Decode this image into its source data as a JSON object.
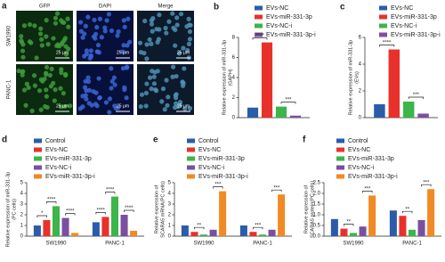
{
  "image_panel": {
    "panel_label": "a",
    "columns": [
      "GFP",
      "DAPI",
      "Merge"
    ],
    "rows": [
      "SW1990",
      "PANC-1"
    ],
    "scale_bar": "25 μm"
  },
  "chart_data": [
    {
      "type": "bar",
      "panel_label": "b",
      "y_label": [
        "Relative expression of miR-331-3p",
        "(GAPH)"
      ],
      "series": [
        {
          "name": "EVs-NC",
          "color": "#2a5caa",
          "values": [
            1.0
          ]
        },
        {
          "name": "EVs-miR-331-3p",
          "color": "#e8312a",
          "values": [
            7.5
          ]
        },
        {
          "name": "EVs-NC-i",
          "color": "#3cb54a",
          "values": [
            1.1
          ]
        },
        {
          "name": "EVs-miR-331-3p-i",
          "color": "#7b4fa0",
          "values": [
            0.2
          ]
        }
      ],
      "ylim": [
        0,
        8
      ],
      "yticks": [
        0,
        2,
        4,
        6,
        8
      ],
      "annotations": [
        {
          "text": "****",
          "category": 0,
          "pair": [
            0,
            1
          ]
        },
        {
          "text": "***",
          "category": 0,
          "pair": [
            2,
            3
          ]
        }
      ]
    },
    {
      "type": "bar",
      "panel_label": "c",
      "y_label": [
        "Relative expression of miR-331-3p",
        "(EVs)"
      ],
      "series": [
        {
          "name": "EVs-NC",
          "color": "#2a5caa",
          "values": [
            1.0
          ]
        },
        {
          "name": "EVs-miR-331-3p",
          "color": "#e8312a",
          "values": [
            5.1
          ]
        },
        {
          "name": "EVs-NC-i",
          "color": "#3cb54a",
          "values": [
            1.2
          ]
        },
        {
          "name": "EVs-miR-331-3p-i",
          "color": "#7b4fa0",
          "values": [
            0.3
          ]
        }
      ],
      "ylim": [
        0,
        6
      ],
      "yticks": [
        0,
        2,
        4,
        6
      ],
      "annotations": [
        {
          "text": "****",
          "category": 0,
          "pair": [
            0,
            1
          ]
        },
        {
          "text": "***",
          "category": 0,
          "pair": [
            2,
            3
          ]
        }
      ]
    },
    {
      "type": "bar",
      "panel_label": "d",
      "y_label": [
        "Relative expression of miR-331-3p",
        "(PC cells)"
      ],
      "categories": [
        "SW1990",
        "PANC-1"
      ],
      "series": [
        {
          "name": "Control",
          "color": "#2a5caa",
          "values": [
            1.0,
            1.3
          ]
        },
        {
          "name": "EVs-NC",
          "color": "#e8312a",
          "values": [
            1.5,
            1.8
          ]
        },
        {
          "name": "EVs-miR-331-3p",
          "color": "#3cb54a",
          "values": [
            2.8,
            3.7
          ]
        },
        {
          "name": "EVs-NC-i",
          "color": "#7b4fa0",
          "values": [
            1.7,
            2.0
          ]
        },
        {
          "name": "EVs-miR-331-3p-i",
          "color": "#f08a24",
          "values": [
            0.3,
            0.5
          ]
        }
      ],
      "ylim": [
        0,
        5
      ],
      "yticks": [
        0,
        1,
        2,
        3,
        4,
        5
      ],
      "annotations": [
        {
          "text": "*",
          "category": 0,
          "pair": [
            0,
            1
          ]
        },
        {
          "text": "****",
          "category": 0,
          "pair": [
            1,
            2
          ]
        },
        {
          "text": "****",
          "category": 0,
          "pair": [
            3,
            4
          ]
        },
        {
          "text": "****",
          "category": 1,
          "pair": [
            0,
            1
          ]
        },
        {
          "text": "****",
          "category": 1,
          "pair": [
            1,
            2
          ]
        },
        {
          "text": "****",
          "category": 1,
          "pair": [
            3,
            4
          ]
        }
      ]
    },
    {
      "type": "bar",
      "panel_label": "e",
      "y_label": [
        "Relative expression of",
        "SCARA5 mRNA(PC cells)"
      ],
      "categories": [
        "SW1990",
        "PANC-1"
      ],
      "series": [
        {
          "name": "Control",
          "color": "#2a5caa",
          "values": [
            1.0,
            1.0
          ]
        },
        {
          "name": "EVs-NC",
          "color": "#e8312a",
          "values": [
            0.4,
            0.4
          ]
        },
        {
          "name": "EVs-miR-331-3p",
          "color": "#3cb54a",
          "values": [
            0.15,
            0.15
          ]
        },
        {
          "name": "EVs-NC-i",
          "color": "#7b4fa0",
          "values": [
            0.6,
            0.6
          ]
        },
        {
          "name": "EVs-miR-331-3p-i",
          "color": "#f08a24",
          "values": [
            4.2,
            3.9
          ]
        }
      ],
      "ylim": [
        0,
        5
      ],
      "yticks": [
        0,
        1,
        2,
        3,
        4,
        5
      ],
      "annotations": [
        {
          "text": "**",
          "category": 0,
          "pair": [
            1,
            2
          ]
        },
        {
          "text": "***",
          "category": 0,
          "pair": [
            3,
            4
          ]
        },
        {
          "text": "***",
          "category": 1,
          "pair": [
            1,
            2
          ]
        },
        {
          "text": "***",
          "category": 1,
          "pair": [
            3,
            4
          ]
        }
      ]
    },
    {
      "type": "bar",
      "panel_label": "f",
      "y_label": [
        "Relative expression of",
        "SCARA5 protein(PC cells)"
      ],
      "categories": [
        "SW1990",
        "PANC-1"
      ],
      "series": [
        {
          "name": "Control",
          "color": "#2a5caa",
          "values": [
            0.8,
            1.2
          ]
        },
        {
          "name": "EVs-NC",
          "color": "#e8312a",
          "values": [
            0.35,
            0.95
          ]
        },
        {
          "name": "EVs-miR-331-3p",
          "color": "#3cb54a",
          "values": [
            0.15,
            0.3
          ]
        },
        {
          "name": "EVs-NC-i",
          "color": "#7b4fa0",
          "values": [
            0.45,
            0.75
          ]
        },
        {
          "name": "EVs-miR-331-3p-i",
          "color": "#f08a24",
          "values": [
            1.9,
            2.2
          ]
        }
      ],
      "ylim": [
        0,
        2.5
      ],
      "yticks": [
        {
          "value": 0,
          "label": "0.0"
        },
        {
          "value": 0.5,
          "label": "0.5"
        },
        {
          "value": 1,
          "label": "1.0"
        },
        {
          "value": 1.5,
          "label": "1.5"
        },
        {
          "value": 2,
          "label": "2.0"
        },
        {
          "value": 2.5,
          "label": "2.5"
        }
      ],
      "annotations": [
        {
          "text": "**",
          "category": 0,
          "pair": [
            1,
            2
          ]
        },
        {
          "text": "***",
          "category": 0,
          "pair": [
            3,
            4
          ]
        },
        {
          "text": "**",
          "category": 1,
          "pair": [
            1,
            2
          ]
        },
        {
          "text": "***",
          "category": 1,
          "pair": [
            3,
            4
          ]
        }
      ]
    }
  ]
}
